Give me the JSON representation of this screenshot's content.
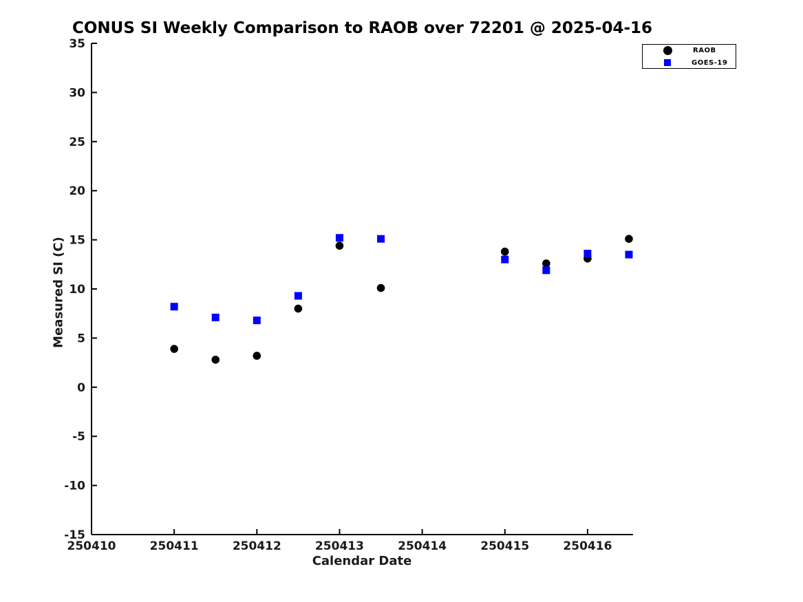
{
  "chart_data": {
    "type": "scatter",
    "title": "CONUS SI Weekly Comparison to RAOB over 72201 @ 2025-04-16",
    "xlabel": "Calendar Date",
    "ylabel": "Measured SI (C)",
    "xlim": [
      250410,
      250416.55
    ],
    "ylim": [
      -15,
      35
    ],
    "xticks": [
      250410,
      250411,
      250412,
      250413,
      250414,
      250415,
      250416
    ],
    "xtick_labels": [
      "250410",
      "250411",
      "250412",
      "250413",
      "250414",
      "250415",
      "250416"
    ],
    "yticks": [
      35,
      30,
      25,
      20,
      15,
      10,
      5,
      0,
      -5,
      -10,
      -15
    ],
    "grid": false,
    "legend_position": "top-right-outside",
    "background_color": "#ffffff",
    "axis_color": "#000000",
    "series": [
      {
        "name": "RAOB",
        "marker": "circle",
        "color": "#000000",
        "points": [
          [
            250411.0,
            3.9
          ],
          [
            250411.5,
            2.8
          ],
          [
            250412.0,
            3.2
          ],
          [
            250412.5,
            8.0
          ],
          [
            250413.0,
            14.4
          ],
          [
            250413.5,
            10.1
          ],
          [
            250415.0,
            13.8
          ],
          [
            250415.5,
            12.6
          ],
          [
            250416.0,
            13.1
          ],
          [
            250416.5,
            15.1
          ]
        ]
      },
      {
        "name": "GOES-19",
        "marker": "square",
        "color": "#0000ff",
        "points": [
          [
            250411.0,
            8.2
          ],
          [
            250411.5,
            7.1
          ],
          [
            250412.0,
            6.8
          ],
          [
            250412.5,
            9.3
          ],
          [
            250413.0,
            15.2
          ],
          [
            250413.5,
            15.1
          ],
          [
            250415.0,
            13.0
          ],
          [
            250415.5,
            11.9
          ],
          [
            250416.0,
            13.6
          ],
          [
            250416.5,
            13.5
          ]
        ]
      }
    ]
  }
}
